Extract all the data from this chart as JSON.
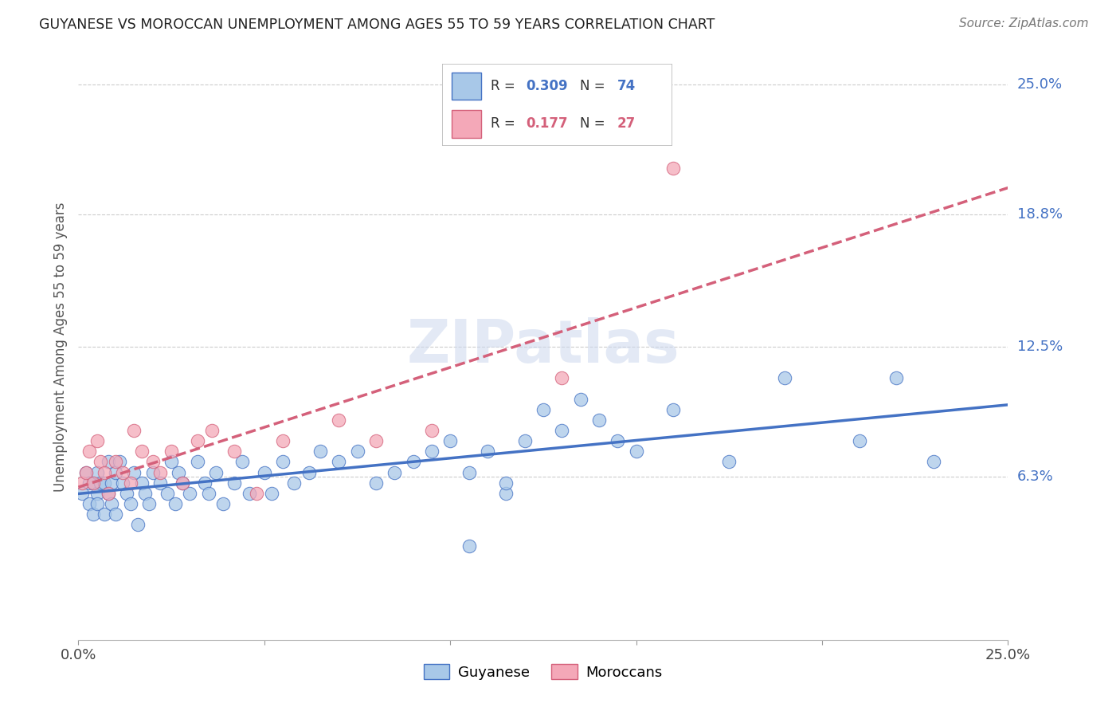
{
  "title": "GUYANESE VS MOROCCAN UNEMPLOYMENT AMONG AGES 55 TO 59 YEARS CORRELATION CHART",
  "source": "Source: ZipAtlas.com",
  "ylabel": "Unemployment Among Ages 55 to 59 years",
  "xlim": [
    0.0,
    0.25
  ],
  "ylim": [
    -0.015,
    0.265
  ],
  "ytick_labels_right": [
    "25.0%",
    "18.8%",
    "12.5%",
    "6.3%"
  ],
  "ytick_vals_right": [
    0.25,
    0.188,
    0.125,
    0.063
  ],
  "guyanese_color": "#a8c8e8",
  "moroccan_color": "#f4a8b8",
  "guyanese_line_color": "#4472c4",
  "moroccan_line_color": "#d4607a",
  "background_color": "#ffffff",
  "guyanese_x": [
    0.001,
    0.002,
    0.003,
    0.003,
    0.004,
    0.004,
    0.005,
    0.005,
    0.005,
    0.006,
    0.007,
    0.007,
    0.008,
    0.008,
    0.009,
    0.009,
    0.01,
    0.01,
    0.011,
    0.012,
    0.013,
    0.014,
    0.015,
    0.016,
    0.017,
    0.018,
    0.019,
    0.02,
    0.022,
    0.024,
    0.025,
    0.026,
    0.027,
    0.028,
    0.03,
    0.032,
    0.034,
    0.035,
    0.037,
    0.039,
    0.042,
    0.044,
    0.046,
    0.05,
    0.052,
    0.055,
    0.058,
    0.062,
    0.065,
    0.07,
    0.075,
    0.08,
    0.085,
    0.09,
    0.095,
    0.1,
    0.105,
    0.11,
    0.12,
    0.13,
    0.14,
    0.16,
    0.175,
    0.19,
    0.21,
    0.125,
    0.15,
    0.135,
    0.115,
    0.23,
    0.22,
    0.115,
    0.105,
    0.145
  ],
  "guyanese_y": [
    0.055,
    0.065,
    0.06,
    0.05,
    0.06,
    0.045,
    0.055,
    0.065,
    0.05,
    0.06,
    0.045,
    0.06,
    0.055,
    0.07,
    0.06,
    0.05,
    0.065,
    0.045,
    0.07,
    0.06,
    0.055,
    0.05,
    0.065,
    0.04,
    0.06,
    0.055,
    0.05,
    0.065,
    0.06,
    0.055,
    0.07,
    0.05,
    0.065,
    0.06,
    0.055,
    0.07,
    0.06,
    0.055,
    0.065,
    0.05,
    0.06,
    0.07,
    0.055,
    0.065,
    0.055,
    0.07,
    0.06,
    0.065,
    0.075,
    0.07,
    0.075,
    0.06,
    0.065,
    0.07,
    0.075,
    0.08,
    0.065,
    0.075,
    0.08,
    0.085,
    0.09,
    0.095,
    0.07,
    0.11,
    0.08,
    0.095,
    0.075,
    0.1,
    0.055,
    0.07,
    0.11,
    0.06,
    0.03,
    0.08
  ],
  "moroccan_x": [
    0.001,
    0.002,
    0.003,
    0.004,
    0.005,
    0.006,
    0.007,
    0.008,
    0.01,
    0.012,
    0.014,
    0.015,
    0.017,
    0.02,
    0.022,
    0.025,
    0.028,
    0.032,
    0.036,
    0.042,
    0.048,
    0.055,
    0.07,
    0.08,
    0.095,
    0.13,
    0.16
  ],
  "moroccan_y": [
    0.06,
    0.065,
    0.075,
    0.06,
    0.08,
    0.07,
    0.065,
    0.055,
    0.07,
    0.065,
    0.06,
    0.085,
    0.075,
    0.07,
    0.065,
    0.075,
    0.06,
    0.08,
    0.085,
    0.075,
    0.055,
    0.08,
    0.09,
    0.08,
    0.085,
    0.11,
    0.21
  ]
}
